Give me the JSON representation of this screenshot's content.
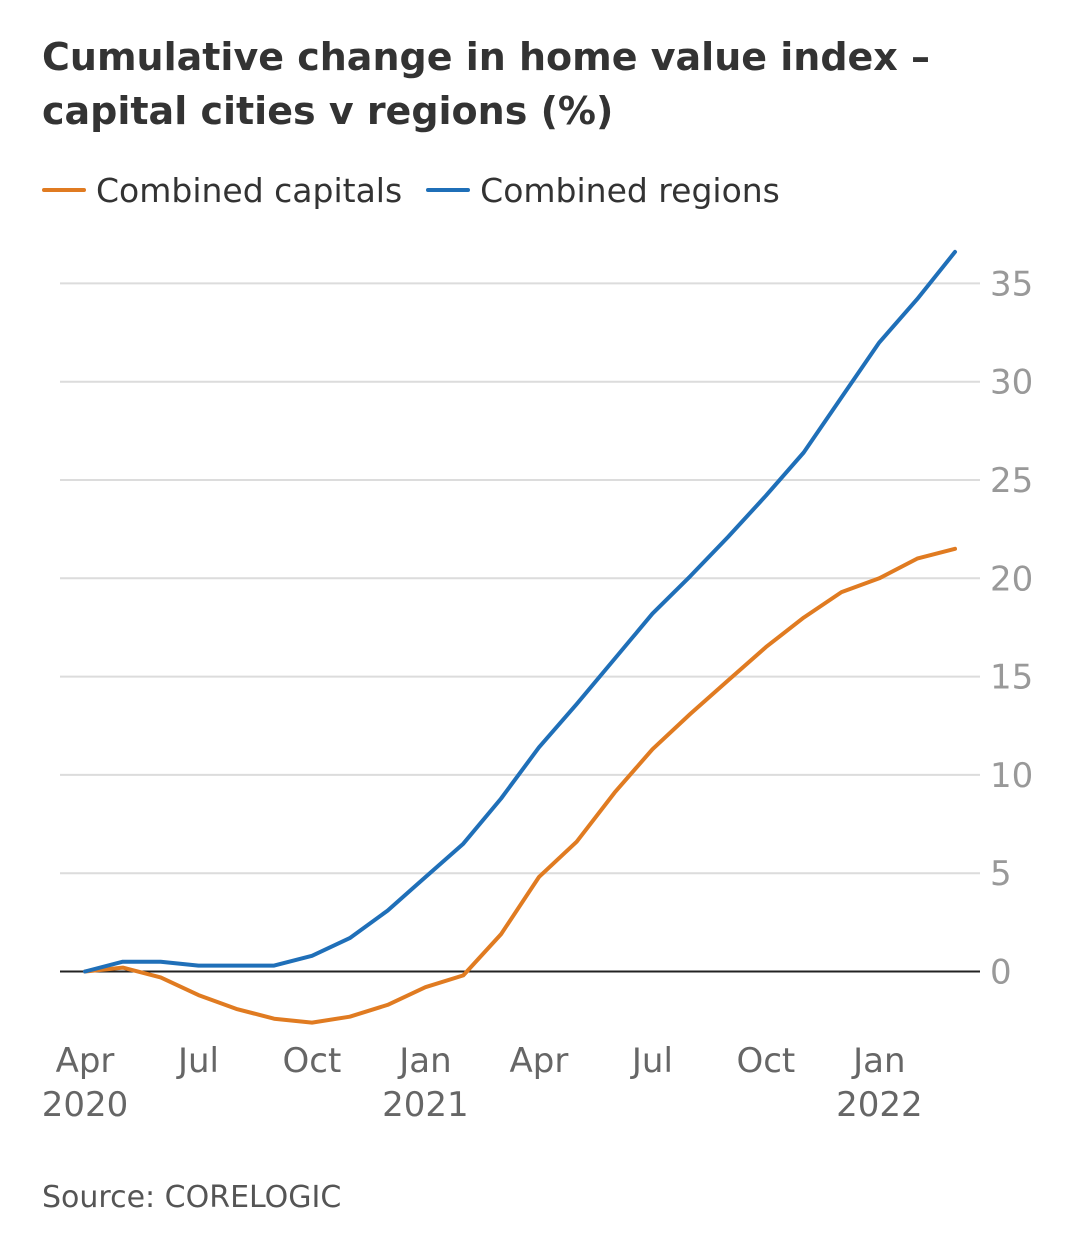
{
  "title": "Cumulative change in home value index – capital cities v regions (%)",
  "source": "Source: CORELOGIC",
  "colors": {
    "capitals": "#e07b21",
    "regions": "#1f6fb8",
    "grid": "#dcdcdc",
    "zero": "#222222",
    "tick": "#999999",
    "xtick": "#666666"
  },
  "chart_data": {
    "type": "line",
    "title": "Cumulative change in home value index – capital cities v regions (%)",
    "xlabel": "",
    "ylabel": "",
    "x_dates": [
      "2020-04",
      "2020-05",
      "2020-06",
      "2020-07",
      "2020-08",
      "2020-09",
      "2020-10",
      "2020-11",
      "2020-12",
      "2021-01",
      "2021-02",
      "2021-03",
      "2021-04",
      "2021-05",
      "2021-06",
      "2021-07",
      "2021-08",
      "2021-09",
      "2021-10",
      "2021-11",
      "2021-12",
      "2022-01",
      "2022-02",
      "2022-03"
    ],
    "x_ticks": [
      {
        "date": "2020-04",
        "label": [
          "Apr",
          "2020"
        ]
      },
      {
        "date": "2020-07",
        "label": [
          "Jul"
        ]
      },
      {
        "date": "2020-10",
        "label": [
          "Oct"
        ]
      },
      {
        "date": "2021-01",
        "label": [
          "Jan",
          "2021"
        ]
      },
      {
        "date": "2021-04",
        "label": [
          "Apr"
        ]
      },
      {
        "date": "2021-07",
        "label": [
          "Jul"
        ]
      },
      {
        "date": "2021-10",
        "label": [
          "Oct"
        ]
      },
      {
        "date": "2022-01",
        "label": [
          "Jan",
          "2022"
        ]
      }
    ],
    "y_ticks": [
      0,
      5,
      10,
      15,
      20,
      25,
      30,
      35
    ],
    "ylim": [
      -2.6,
      37
    ],
    "grid": true,
    "legend_position": "top-left",
    "y_axis_side": "right",
    "series": [
      {
        "name": "Combined capitals",
        "color": "#e07b21",
        "values": [
          0,
          0.2,
          -0.3,
          -1.2,
          -1.9,
          -2.4,
          -2.6,
          -2.3,
          -1.7,
          -0.8,
          -0.2,
          1.9,
          4.8,
          6.6,
          9.1,
          11.3,
          13.1,
          14.8,
          16.5,
          18.0,
          19.3,
          20.0,
          21.0,
          21.5
        ]
      },
      {
        "name": "Combined regions",
        "color": "#1f6fb8",
        "values": [
          0,
          0.5,
          0.5,
          0.3,
          0.3,
          0.3,
          0.8,
          1.7,
          3.1,
          4.8,
          6.5,
          8.8,
          11.4,
          13.6,
          15.9,
          18.2,
          20.1,
          22.1,
          24.2,
          26.4,
          29.2,
          32.0,
          34.2,
          36.6
        ]
      }
    ]
  }
}
